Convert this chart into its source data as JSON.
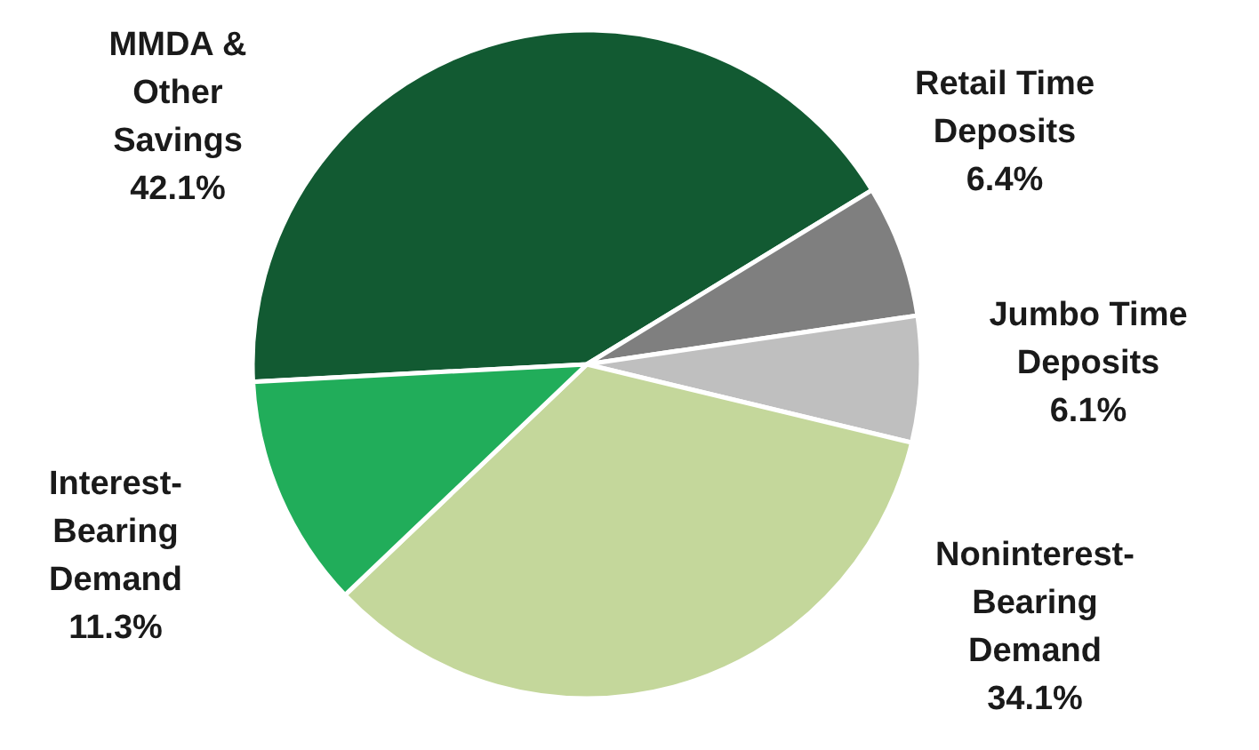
{
  "chart_data": {
    "type": "pie",
    "categories": [
      "MMDA & Other Savings",
      "Retail Time Deposits",
      "Jumbo Time Deposits",
      "Noninterest-Bearing Demand",
      "Interest-Bearing Demand"
    ],
    "values": [
      42.1,
      6.4,
      6.1,
      34.1,
      11.3
    ],
    "value_labels": [
      "42.1%",
      "6.4%",
      "6.1%",
      "34.1%",
      "11.3%"
    ],
    "colors": [
      "#125a32",
      "#7f7f7f",
      "#bfbfbf",
      "#c4d79b",
      "#21ad5a"
    ]
  }
}
